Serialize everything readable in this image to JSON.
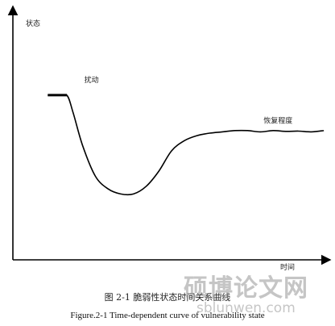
{
  "chart_data": {
    "type": "line",
    "title": "",
    "xlabel": "时间",
    "ylabel": "状态",
    "xlim": [
      0,
      100
    ],
    "ylim": [
      0,
      100
    ],
    "grid": false,
    "legend": "none",
    "series": [
      {
        "name": "",
        "x": [
          11,
          14,
          17,
          19,
          22,
          26,
          30,
          34,
          38,
          42,
          46,
          50,
          54,
          58,
          62,
          66,
          70,
          74,
          78,
          82,
          86,
          90,
          94,
          98
        ],
        "y": [
          65,
          65,
          65,
          58,
          45,
          33,
          28,
          26,
          26,
          29,
          35,
          43,
          47,
          49,
          50,
          50.5,
          51,
          51,
          50.5,
          51,
          50.7,
          50.8,
          50.5,
          51
        ],
        "color": "#000000"
      }
    ],
    "annotations": [
      {
        "text": "扰动",
        "x": 22.5,
        "y": 70
      },
      {
        "text": "恢复程度",
        "x": 79,
        "y": 54
      }
    ]
  },
  "caption_cn": "图 2-1 脆弱性状态时间关系曲线",
  "caption_en": "Figure.2-1 Time-dependent curve of vulnerability state",
  "watermark_cn": "硕博论文网",
  "watermark_en": "sblunwen.com"
}
